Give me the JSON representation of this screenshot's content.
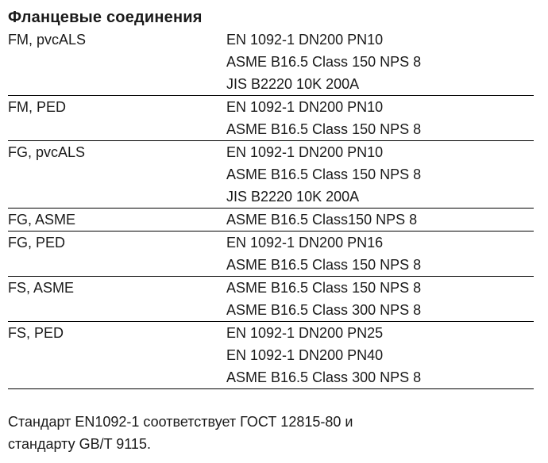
{
  "title": "Фланцевые соединения",
  "table": {
    "rows": [
      {
        "label": "FM, pvcALS",
        "standards": [
          "EN 1092-1 DN200 PN10",
          "ASME B16.5 Class 150 NPS 8",
          "JIS B2220 10K 200A"
        ]
      },
      {
        "label": "FM, PED",
        "standards": [
          "EN 1092-1 DN200 PN10",
          "ASME B16.5 Class 150 NPS 8"
        ]
      },
      {
        "label": "FG, pvcALS",
        "standards": [
          "EN 1092-1 DN200 PN10",
          "ASME B16.5 Class 150 NPS 8",
          "JIS B2220 10K 200A"
        ]
      },
      {
        "label": "FG, ASME",
        "standards": [
          "ASME B16.5 Class150 NPS 8"
        ]
      },
      {
        "label": "FG, PED",
        "standards": [
          "EN 1092-1 DN200 PN16",
          "ASME B16.5 Class 150 NPS 8"
        ]
      },
      {
        "label": "FS, ASME",
        "standards": [
          "ASME B16.5 Class 150 NPS 8",
          "ASME B16.5 Class 300 NPS 8"
        ]
      },
      {
        "label": "FS, PED",
        "standards": [
          "EN 1092-1 DN200 PN25",
          "EN 1092-1 DN200 PN40",
          "ASME B16.5 Class 300 NPS 8"
        ]
      }
    ]
  },
  "note": "Стандарт EN1092-1 соответствует ГОСТ 12815-80 и стандарту GB/T 9115.",
  "colors": {
    "text": "#1a1a1a",
    "rule": "#000000",
    "background": "#ffffff"
  }
}
